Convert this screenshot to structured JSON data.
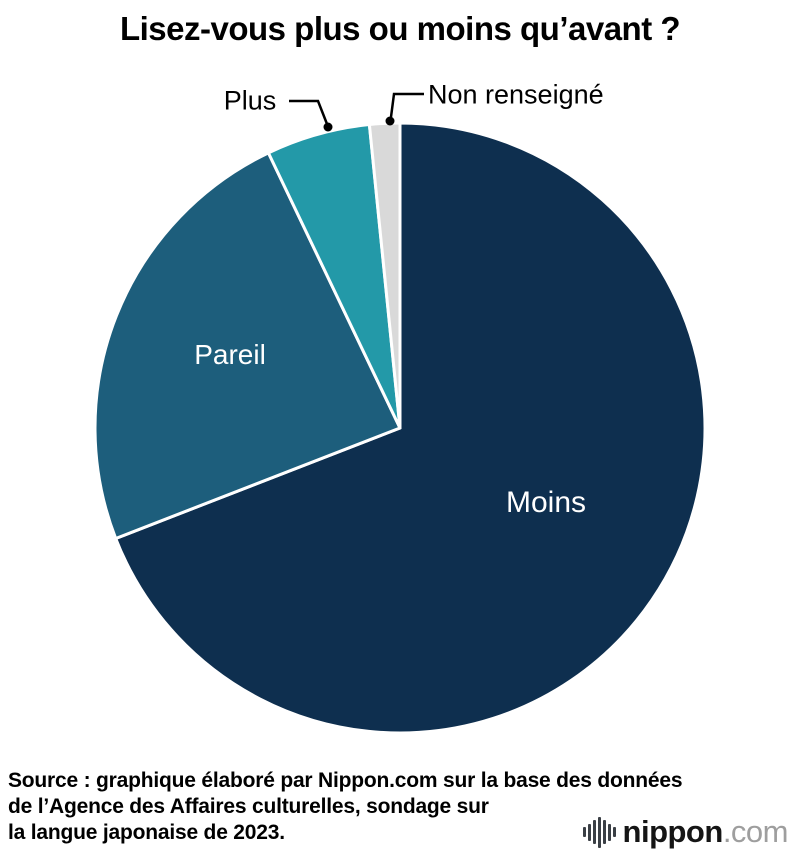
{
  "title": "Lisez-vous plus ou moins qu’avant ?",
  "chart_data": {
    "type": "pie",
    "title": "Lisez-vous plus ou moins qu’avant ?",
    "start_angle_deg": 0,
    "direction": "clockwise",
    "values_shown_on_chart": false,
    "legend": "none",
    "slices": [
      {
        "label": "Moins",
        "value": 69.1,
        "color": "#0e2f4f",
        "label_placement": "inside-white"
      },
      {
        "label": "Pareil",
        "value": 23.8,
        "color": "#1d5e7c",
        "label_placement": "inside-white"
      },
      {
        "label": "Plus",
        "value": 5.5,
        "color": "#2399a8",
        "label_placement": "outside-callout"
      },
      {
        "label": "Non renseigné",
        "value": 1.6,
        "color": "#d9d9d9",
        "label_placement": "outside-callout"
      }
    ]
  },
  "footer": {
    "line1": "Source : graphique élaboré par Nippon.com sur la base des données",
    "line2": "de l’Agence des Affaires culturelles, sondage sur",
    "line3": "la langue japonaise de 2023."
  },
  "logo": {
    "name": "nippon",
    "tld": ".com"
  }
}
